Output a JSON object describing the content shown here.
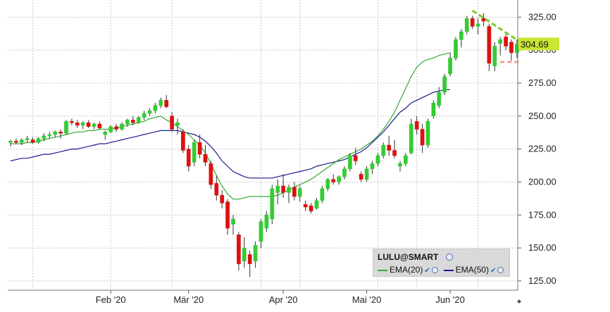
{
  "chart_data": {
    "type": "candlestick",
    "symbol": "LULU@SMART",
    "last_price_label": "304.69",
    "ylim": [
      118,
      338
    ],
    "y_ticks": [
      "325.00",
      "300.00",
      "275.00",
      "250.00",
      "225.00",
      "200.00",
      "175.00",
      "150.00",
      "125.00"
    ],
    "x_tick_labels": [
      "Feb '20",
      "Mär '20",
      "Apr '20",
      "Mai '20",
      "Jun '20"
    ],
    "grid": true,
    "legend_position": "bottom-right",
    "colors": {
      "up": "#33cc33",
      "down": "#dd1111",
      "ema20": "#33aa33",
      "ema50": "#1a1a8c",
      "price_tag": "#c8e632",
      "trendline": "#7acc2a",
      "support": "#f0a090"
    },
    "series": [
      {
        "name": "EMA(20)",
        "values": [
          229,
          229,
          229,
          230,
          230,
          231,
          232,
          233,
          234,
          235,
          236,
          237,
          238,
          238,
          239,
          239,
          240,
          240,
          240,
          241,
          242,
          243,
          244,
          245,
          246,
          248,
          249,
          250,
          247,
          245,
          242,
          239,
          236,
          232,
          228,
          222,
          214,
          205,
          197,
          191,
          187,
          187,
          188,
          189,
          189,
          189,
          189,
          189,
          190,
          192,
          194,
          196,
          198,
          200,
          202,
          205,
          208,
          211,
          214,
          217,
          219,
          221,
          223,
          225,
          228,
          231,
          235,
          240,
          246,
          253,
          262,
          271,
          280,
          287,
          291,
          293,
          294,
          296,
          297,
          298
        ]
      },
      {
        "name": "EMA(50)",
        "values": [
          216,
          217,
          218,
          218,
          219,
          220,
          221,
          221,
          222,
          223,
          224,
          225,
          225,
          226,
          227,
          228,
          229,
          229,
          230,
          231,
          232,
          233,
          234,
          235,
          236,
          237,
          238,
          239,
          239,
          239,
          239,
          238,
          237,
          236,
          234,
          231,
          227,
          222,
          216,
          212,
          208,
          206,
          204,
          203,
          203,
          203,
          203,
          203,
          204,
          205,
          206,
          207,
          208,
          209,
          210,
          212,
          213,
          214,
          215,
          216,
          217,
          219,
          221,
          223,
          226,
          230,
          234,
          238,
          243,
          248,
          253,
          256,
          260,
          262,
          264,
          266,
          268,
          269,
          270,
          270
        ]
      }
    ],
    "candles": [
      {
        "o": 230,
        "h": 232,
        "l": 227,
        "c": 231
      },
      {
        "o": 231,
        "h": 233,
        "l": 229,
        "c": 230
      },
      {
        "o": 230,
        "h": 233,
        "l": 228,
        "c": 232
      },
      {
        "o": 232,
        "h": 235,
        "l": 230,
        "c": 233
      },
      {
        "o": 232,
        "h": 234,
        "l": 229,
        "c": 230
      },
      {
        "o": 230,
        "h": 234,
        "l": 229,
        "c": 233
      },
      {
        "o": 233,
        "h": 237,
        "l": 231,
        "c": 235
      },
      {
        "o": 235,
        "h": 238,
        "l": 233,
        "c": 236
      },
      {
        "o": 236,
        "h": 239,
        "l": 234,
        "c": 238
      },
      {
        "o": 238,
        "h": 240,
        "l": 233,
        "c": 237
      },
      {
        "o": 237,
        "h": 247,
        "l": 236,
        "c": 246
      },
      {
        "o": 246,
        "h": 248,
        "l": 243,
        "c": 245
      },
      {
        "o": 245,
        "h": 247,
        "l": 241,
        "c": 243
      },
      {
        "o": 243,
        "h": 246,
        "l": 240,
        "c": 245
      },
      {
        "o": 245,
        "h": 247,
        "l": 241,
        "c": 242
      },
      {
        "o": 242,
        "h": 245,
        "l": 240,
        "c": 244
      },
      {
        "o": 244,
        "h": 246,
        "l": 240,
        "c": 241
      },
      {
        "o": 236,
        "h": 239,
        "l": 232,
        "c": 238
      },
      {
        "o": 238,
        "h": 243,
        "l": 237,
        "c": 242
      },
      {
        "o": 242,
        "h": 244,
        "l": 238,
        "c": 240
      },
      {
        "o": 240,
        "h": 245,
        "l": 239,
        "c": 244
      },
      {
        "o": 244,
        "h": 248,
        "l": 242,
        "c": 247
      },
      {
        "o": 247,
        "h": 250,
        "l": 243,
        "c": 245
      },
      {
        "o": 245,
        "h": 250,
        "l": 244,
        "c": 249
      },
      {
        "o": 249,
        "h": 254,
        "l": 247,
        "c": 252
      },
      {
        "o": 252,
        "h": 256,
        "l": 250,
        "c": 254
      },
      {
        "o": 254,
        "h": 260,
        "l": 252,
        "c": 258
      },
      {
        "o": 258,
        "h": 264,
        "l": 256,
        "c": 262
      },
      {
        "o": 262,
        "h": 266,
        "l": 256,
        "c": 257
      },
      {
        "o": 250,
        "h": 253,
        "l": 238,
        "c": 240
      },
      {
        "o": 243,
        "h": 248,
        "l": 236,
        "c": 245
      },
      {
        "o": 238,
        "h": 240,
        "l": 222,
        "c": 224
      },
      {
        "o": 225,
        "h": 228,
        "l": 208,
        "c": 212
      },
      {
        "o": 215,
        "h": 232,
        "l": 212,
        "c": 230
      },
      {
        "o": 230,
        "h": 236,
        "l": 218,
        "c": 221
      },
      {
        "o": 221,
        "h": 228,
        "l": 212,
        "c": 215
      },
      {
        "o": 214,
        "h": 216,
        "l": 195,
        "c": 198
      },
      {
        "o": 199,
        "h": 205,
        "l": 186,
        "c": 190
      },
      {
        "o": 190,
        "h": 194,
        "l": 180,
        "c": 184
      },
      {
        "o": 185,
        "h": 187,
        "l": 160,
        "c": 165
      },
      {
        "o": 168,
        "h": 175,
        "l": 160,
        "c": 172
      },
      {
        "o": 160,
        "h": 162,
        "l": 133,
        "c": 138
      },
      {
        "o": 140,
        "h": 158,
        "l": 135,
        "c": 150
      },
      {
        "o": 145,
        "h": 148,
        "l": 128,
        "c": 138
      },
      {
        "o": 140,
        "h": 155,
        "l": 135,
        "c": 152
      },
      {
        "o": 155,
        "h": 172,
        "l": 150,
        "c": 170
      },
      {
        "o": 165,
        "h": 178,
        "l": 162,
        "c": 175
      },
      {
        "o": 172,
        "h": 198,
        "l": 168,
        "c": 195
      },
      {
        "o": 192,
        "h": 202,
        "l": 183,
        "c": 197
      },
      {
        "o": 197,
        "h": 206,
        "l": 188,
        "c": 192
      },
      {
        "o": 192,
        "h": 198,
        "l": 184,
        "c": 196
      },
      {
        "o": 196,
        "h": 200,
        "l": 186,
        "c": 189
      },
      {
        "o": 189,
        "h": 197,
        "l": 185,
        "c": 195
      },
      {
        "o": 183,
        "h": 186,
        "l": 178,
        "c": 181
      },
      {
        "o": 182,
        "h": 184,
        "l": 176,
        "c": 178
      },
      {
        "o": 180,
        "h": 188,
        "l": 179,
        "c": 186
      },
      {
        "o": 186,
        "h": 197,
        "l": 184,
        "c": 195
      },
      {
        "o": 195,
        "h": 203,
        "l": 193,
        "c": 202
      },
      {
        "o": 202,
        "h": 206,
        "l": 198,
        "c": 200
      },
      {
        "o": 200,
        "h": 205,
        "l": 198,
        "c": 204
      },
      {
        "o": 204,
        "h": 212,
        "l": 202,
        "c": 210
      },
      {
        "o": 210,
        "h": 222,
        "l": 208,
        "c": 220
      },
      {
        "o": 220,
        "h": 226,
        "l": 213,
        "c": 216
      },
      {
        "o": 206,
        "h": 208,
        "l": 200,
        "c": 202
      },
      {
        "o": 202,
        "h": 212,
        "l": 200,
        "c": 210
      },
      {
        "o": 210,
        "h": 216,
        "l": 206,
        "c": 214
      },
      {
        "o": 214,
        "h": 222,
        "l": 212,
        "c": 220
      },
      {
        "o": 220,
        "h": 230,
        "l": 218,
        "c": 228
      },
      {
        "o": 228,
        "h": 235,
        "l": 220,
        "c": 224
      },
      {
        "o": 224,
        "h": 232,
        "l": 218,
        "c": 220
      },
      {
        "o": 212,
        "h": 216,
        "l": 208,
        "c": 214
      },
      {
        "o": 214,
        "h": 222,
        "l": 212,
        "c": 220
      },
      {
        "o": 222,
        "h": 248,
        "l": 221,
        "c": 244
      },
      {
        "o": 246,
        "h": 250,
        "l": 236,
        "c": 240
      },
      {
        "o": 240,
        "h": 244,
        "l": 222,
        "c": 228
      },
      {
        "o": 228,
        "h": 248,
        "l": 226,
        "c": 246
      },
      {
        "o": 250,
        "h": 262,
        "l": 248,
        "c": 260
      },
      {
        "o": 258,
        "h": 272,
        "l": 256,
        "c": 268
      },
      {
        "o": 268,
        "h": 282,
        "l": 266,
        "c": 280
      },
      {
        "o": 282,
        "h": 298,
        "l": 280,
        "c": 294
      },
      {
        "o": 294,
        "h": 310,
        "l": 292,
        "c": 308
      },
      {
        "o": 308,
        "h": 316,
        "l": 302,
        "c": 314
      },
      {
        "o": 314,
        "h": 326,
        "l": 312,
        "c": 324
      },
      {
        "o": 324,
        "h": 326,
        "l": 316,
        "c": 318
      },
      {
        "o": 318,
        "h": 324,
        "l": 312,
        "c": 320
      },
      {
        "o": 324,
        "h": 328,
        "l": 318,
        "c": 322
      },
      {
        "o": 318,
        "h": 320,
        "l": 284,
        "c": 290
      },
      {
        "o": 288,
        "h": 306,
        "l": 284,
        "c": 303
      },
      {
        "o": 305,
        "h": 310,
        "l": 296,
        "c": 308
      },
      {
        "o": 310,
        "h": 314,
        "l": 300,
        "c": 303
      },
      {
        "o": 306,
        "h": 308,
        "l": 292,
        "c": 298
      },
      {
        "o": 298,
        "h": 308,
        "l": 294,
        "c": 304.69
      }
    ]
  }
}
